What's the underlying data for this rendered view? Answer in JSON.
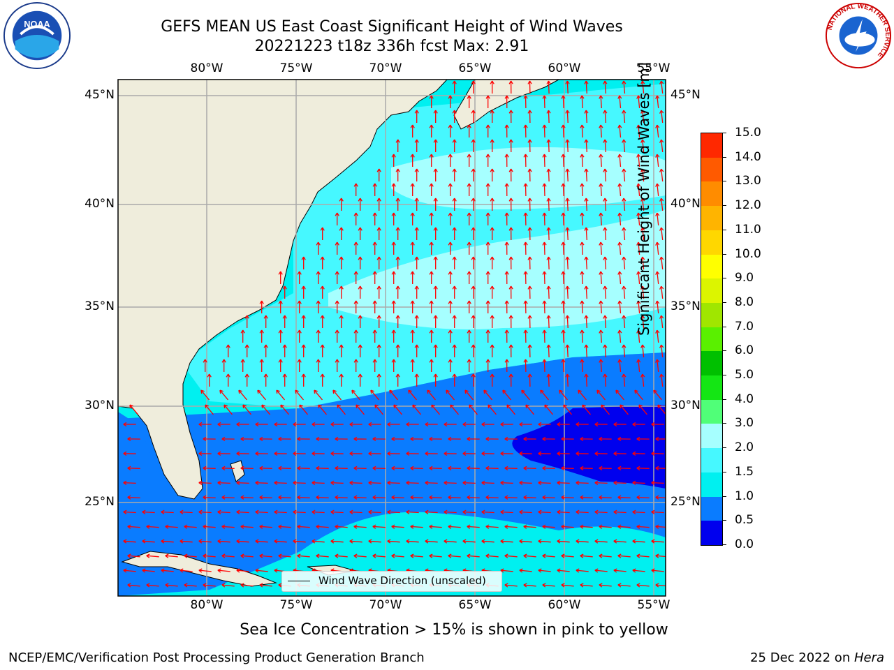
{
  "title_line1": "GEFS MEAN US East Coast Significant Height of Wind Waves",
  "title_line2": "20221223 t18z 336h fcst    Max: 2.91",
  "subtitle": "Sea Ice Concentration > 15% is shown in pink to yellow",
  "footer_left": "NCEP/EMC/Verification Post Processing Product Generation Branch",
  "footer_right_prefix": "25 Dec 2022 on ",
  "footer_right_machine": "Hera",
  "legend_label": "Wind Wave Direction (unscaled)",
  "map": {
    "lon_labels": [
      "80°W",
      "75°W",
      "70°W",
      "65°W",
      "60°W",
      "55°W"
    ],
    "lat_labels": [
      "45°N",
      "40°N",
      "35°N",
      "30°N",
      "25°N"
    ],
    "arrow_color": "#ff0000",
    "land_color": "#efeddc"
  },
  "colorbar": {
    "title": "Significant Height of Wind Waves [m]",
    "ticks": [
      "15.0",
      "14.0",
      "13.0",
      "12.0",
      "11.0",
      "10.0",
      "9.0",
      "8.0",
      "7.0",
      "6.0",
      "5.0",
      "4.0",
      "3.0",
      "2.0",
      "1.5",
      "1.0",
      "0.5",
      "0.0"
    ],
    "colors": [
      "#0000ee",
      "#0a7cff",
      "#00f0f0",
      "#46f8ff",
      "#a6ffff",
      "#50ff78",
      "#14e614",
      "#00c000",
      "#5af000",
      "#a0e600",
      "#dcf500",
      "#ffff00",
      "#ffd700",
      "#ffb400",
      "#ff8c00",
      "#ff5a00",
      "#ff2800",
      "#ff0000"
    ]
  },
  "logos": {
    "left": "NOAA",
    "right_text": "NATIONAL WEATHER SERVICE"
  }
}
